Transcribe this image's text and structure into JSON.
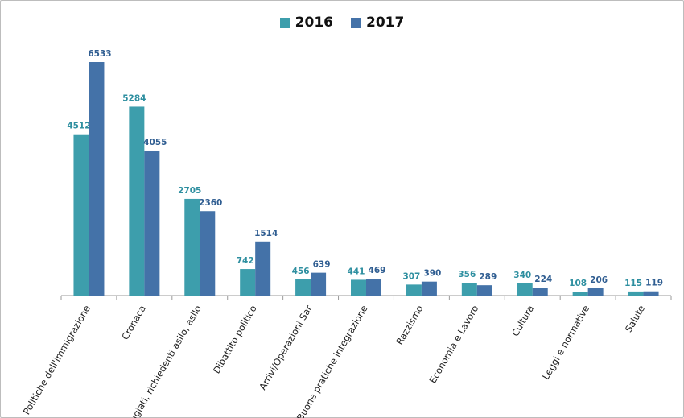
{
  "chart_data": {
    "type": "bar",
    "title": "",
    "xlabel": "",
    "ylabel": "",
    "ylim": [
      0,
      7000
    ],
    "grid": false,
    "legend_position": "top-center",
    "categories": [
      "Politiche dell'immigrazione",
      "Cronaca",
      "Rifugiati, richiedenti asilo, asilo",
      "Dibattito politico",
      "Arrivi/Operazioni Sar",
      "Buone pratiche integrazione",
      "Razzismo",
      "Economia e Lavoro",
      "Cultura",
      "Leggi e normative",
      "Salute"
    ],
    "series": [
      {
        "name": "2016",
        "color": "#3d9eac",
        "label_color": "#2e8fa0",
        "values": [
          4512,
          5284,
          2705,
          742,
          456,
          441,
          307,
          356,
          340,
          108,
          115
        ]
      },
      {
        "name": "2017",
        "color": "#4472a8",
        "label_color": "#2f5d91",
        "values": [
          6533,
          4055,
          2360,
          1514,
          639,
          469,
          390,
          289,
          224,
          206,
          119
        ]
      }
    ]
  },
  "legend": {
    "item_2016": "2016",
    "item_2017": "2017"
  }
}
